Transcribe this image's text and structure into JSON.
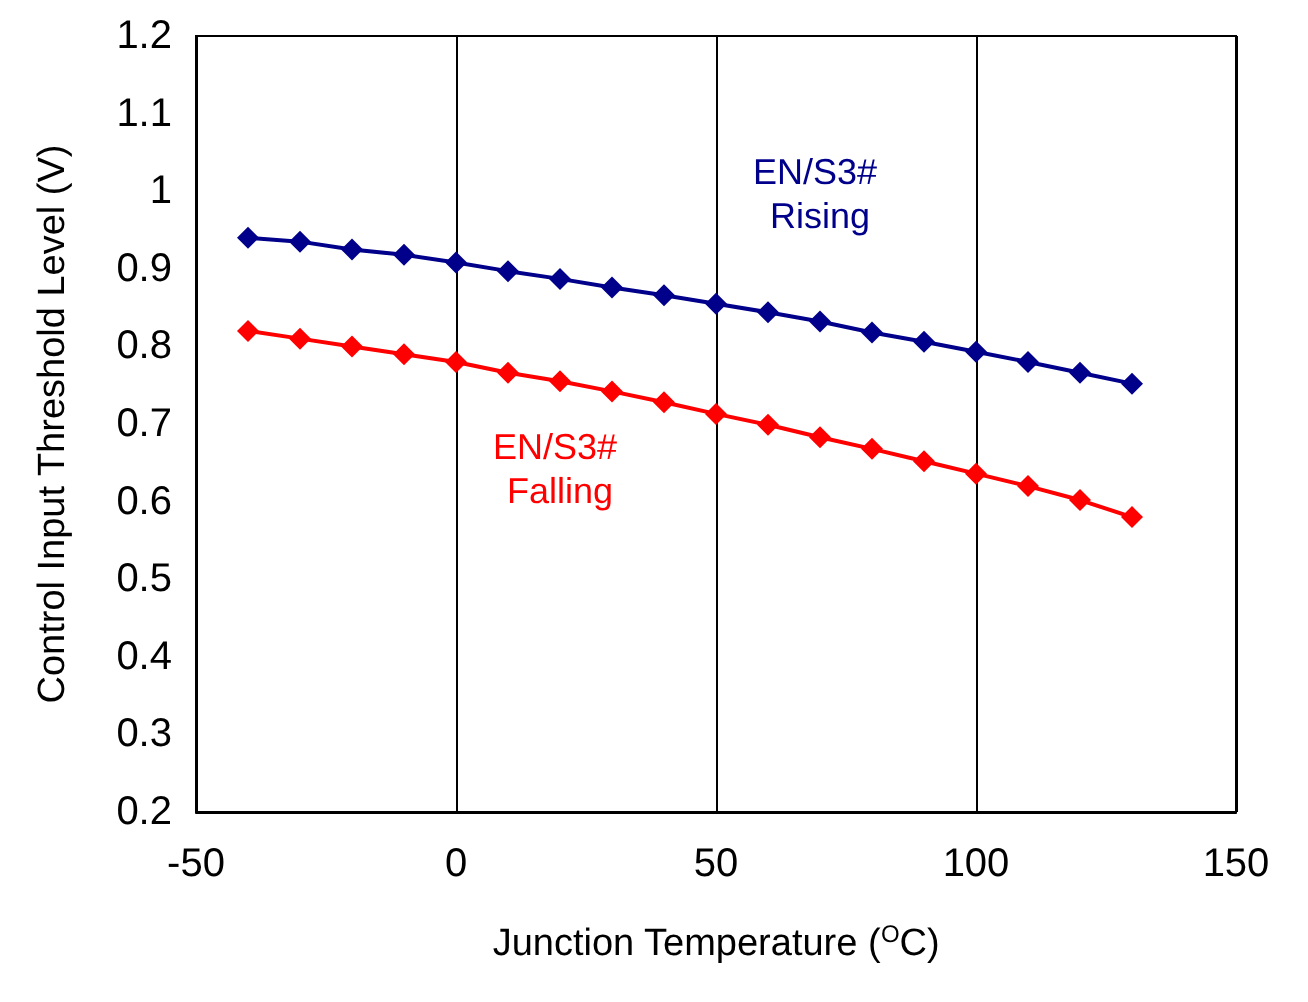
{
  "chart_data": {
    "type": "line",
    "xlabel": "Junction Temperature ($^{O}$C)",
    "ylabel": "Control Input Threshold Level (V)",
    "x": [
      -40,
      -30,
      -20,
      -10,
      0,
      10,
      20,
      30,
      40,
      50,
      60,
      70,
      80,
      90,
      100,
      110,
      120,
      130
    ],
    "series": [
      {
        "name": "EN/S3# Rising",
        "color": "#00008b",
        "values": [
          0.94,
          0.935,
          0.925,
          0.918,
          0.908,
          0.897,
          0.887,
          0.876,
          0.866,
          0.855,
          0.844,
          0.832,
          0.818,
          0.806,
          0.793,
          0.78,
          0.766,
          0.752
        ]
      },
      {
        "name": "EN/S3# Falling",
        "color": "#ff0000",
        "values": [
          0.82,
          0.81,
          0.8,
          0.79,
          0.78,
          0.766,
          0.755,
          0.742,
          0.728,
          0.713,
          0.699,
          0.683,
          0.668,
          0.652,
          0.636,
          0.62,
          0.602,
          0.58
        ]
      }
    ],
    "xlim": [
      -50,
      150
    ],
    "xticks": [
      -50,
      0,
      50,
      100,
      150
    ],
    "ylim": [
      0.2,
      1.2
    ],
    "yticks": [
      0.2,
      0.3,
      0.4,
      0.5,
      0.6,
      0.7,
      0.8,
      0.9,
      1,
      1.1,
      1.2
    ],
    "grid": "x",
    "legend": false,
    "marker": "diamond",
    "line_style": "solid"
  }
}
